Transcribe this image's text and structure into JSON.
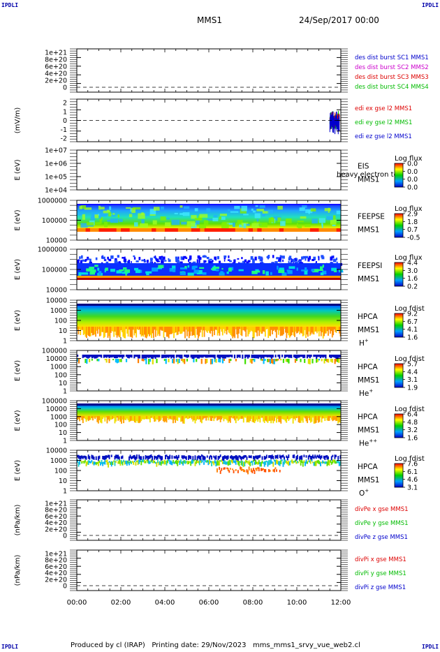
{
  "corner_label": "IPDLI",
  "header": {
    "spacecraft": "MMS1",
    "date": "24/Sep/2017 00:00"
  },
  "footer": {
    "text": "Produced by cl (IRAP)   Printing date: 29/Nov/2023   mms_mms1_srvy_vue_web2.cl"
  },
  "colors": {
    "mms1": "#0000cc",
    "mms2": "#cc00cc",
    "mms3": "#dd0000",
    "mms4": "#00bb00",
    "x": "#dd0000",
    "y": "#00bb00",
    "z": "#0000cc"
  },
  "chart_data": [
    {
      "type": "line",
      "id": "p1",
      "ylabel": "",
      "yticks": [
        "1e+21",
        "8e+20",
        "6e+20",
        "4e+20",
        "2e+20",
        "0"
      ],
      "legend": [
        "des dist burst SC1 MMS1",
        "des dist burst SC2 MMS2",
        "des dist burst SC3 MMS3",
        "des dist burst SC4 MMS4"
      ],
      "series": []
    },
    {
      "type": "line",
      "id": "p2",
      "ylabel": "(mV/m)",
      "yticks": [
        "2",
        "1",
        "0",
        "-1",
        "-2"
      ],
      "ylim": [
        -2.5,
        2.5
      ],
      "legend": [
        "edi ex gse l2 MMS1",
        "edi ey gse l2 MMS1",
        "edi ez gse l2 MMS1"
      ],
      "data_window": {
        "start": "11:30",
        "end": "12:00",
        "range": [
          -2,
          2
        ]
      }
    },
    {
      "type": "heatmap",
      "id": "p3",
      "ylabel": "E (eV)",
      "yticks": [
        "1e+07",
        "1e+06",
        "1e+05",
        "1e+04"
      ],
      "inst": "EIS",
      "sc": "MMS1",
      "overlay": "heavy electron to",
      "cbar_title": "Log flux",
      "cbar_ticks": [
        "0.0",
        "0.0",
        "0.0",
        "0.0"
      ]
    },
    {
      "type": "heatmap",
      "id": "p4",
      "ylabel": "E (eV)",
      "yticks": [
        "1000000",
        "100000",
        "10000"
      ],
      "inst": "FEEPSE",
      "sc": "MMS1",
      "cbar_title": "Log flux",
      "cbar_ticks": [
        "2.9",
        "1.8",
        "0.7",
        "-0.5"
      ]
    },
    {
      "type": "heatmap",
      "id": "p5",
      "ylabel": "E (eV)",
      "yticks": [
        "1000000",
        "100000",
        "10000"
      ],
      "inst": "FEEPSI",
      "sc": "MMS1",
      "cbar_title": "Log flux",
      "cbar_ticks": [
        "4.4",
        "3.0",
        "1.6",
        "0.2"
      ]
    },
    {
      "type": "heatmap",
      "id": "p6",
      "ylabel": "E (eV)",
      "yticks": [
        "10000",
        "1000",
        "100",
        "10",
        "1"
      ],
      "inst": "HPCA",
      "sc": "MMS1",
      "species": "H",
      "charge": "+",
      "cbar_title": "Log fdist",
      "cbar_ticks": [
        "9.2",
        "6.7",
        "4.1",
        "1.6"
      ]
    },
    {
      "type": "heatmap",
      "id": "p7",
      "ylabel": "E (eV)",
      "yticks": [
        "100000",
        "10000",
        "1000",
        "100",
        "10",
        "1"
      ],
      "inst": "HPCA",
      "sc": "MMS1",
      "species": "He",
      "charge": "+",
      "cbar_title": "Log fdist",
      "cbar_ticks": [
        "5.7",
        "4.4",
        "3.1",
        "1.9"
      ]
    },
    {
      "type": "heatmap",
      "id": "p8",
      "ylabel": "E (eV)",
      "yticks": [
        "100000",
        "10000",
        "1000",
        "100",
        "10",
        "1"
      ],
      "inst": "HPCA",
      "sc": "MMS1",
      "species": "He",
      "charge": "++",
      "cbar_title": "Log fdist",
      "cbar_ticks": [
        "6.4",
        "4.8",
        "3.2",
        "1.6"
      ]
    },
    {
      "type": "heatmap",
      "id": "p9",
      "ylabel": "E (eV)",
      "yticks": [
        "10000",
        "1000",
        "100",
        "10",
        "1"
      ],
      "inst": "HPCA",
      "sc": "MMS1",
      "species": "O",
      "charge": "+",
      "cbar_title": "Log fdist",
      "cbar_ticks": [
        "7.6",
        "6.1",
        "4.6",
        "3.1"
      ]
    },
    {
      "type": "line",
      "id": "p10",
      "ylabel": "(nPa/km)",
      "yticks": [
        "1e+21",
        "8e+20",
        "6e+20",
        "4e+20",
        "2e+20",
        "0"
      ],
      "legend": [
        "divPe x gse MMS1",
        "divPe y gse MMS1",
        "divPe z gse MMS1"
      ],
      "series": []
    },
    {
      "type": "line",
      "id": "p11",
      "ylabel": "(nPa/km)",
      "yticks": [
        "1e+21",
        "8e+20",
        "6e+20",
        "4e+20",
        "2e+20",
        "0"
      ],
      "legend": [
        "divPi x gse MMS1",
        "divPi y gse MMS1",
        "divPi z gse MMS1"
      ],
      "series": []
    }
  ],
  "xaxis": {
    "ticks": [
      "00:00",
      "02:00",
      "04:00",
      "06:00",
      "08:00",
      "10:00",
      "12:00"
    ]
  }
}
